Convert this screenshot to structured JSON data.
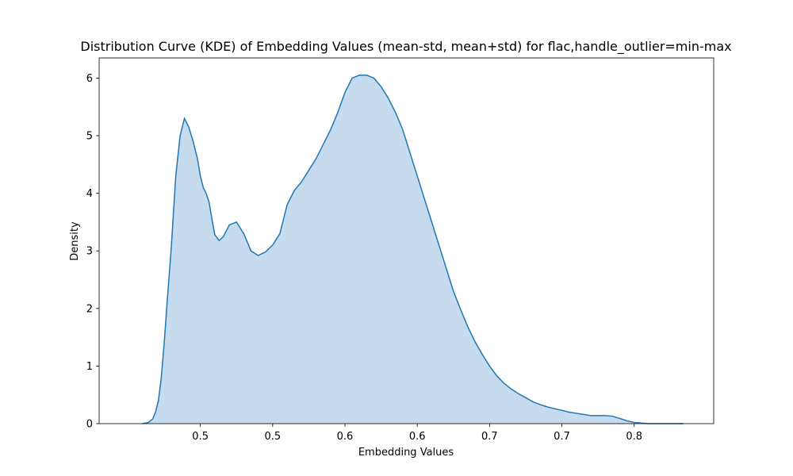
{
  "chart_data": {
    "type": "area",
    "title": "Distribution Curve (KDE) of Embedding Values (mean-std, mean+std) for flac,handle_outlier=min-max",
    "xlabel": "Embedding Values",
    "ylabel": "Density",
    "xlim": [
      0.43,
      0.855
    ],
    "ylim": [
      0,
      6.35
    ],
    "x_ticks": [
      {
        "value": 0.5,
        "label": "0.5"
      },
      {
        "value": 0.55,
        "label": "0.5"
      },
      {
        "value": 0.6,
        "label": "0.6"
      },
      {
        "value": 0.65,
        "label": "0.6"
      },
      {
        "value": 0.7,
        "label": "0.7"
      },
      {
        "value": 0.75,
        "label": "0.7"
      },
      {
        "value": 0.8,
        "label": "0.8"
      }
    ],
    "y_ticks": [
      {
        "value": 0,
        "label": "0"
      },
      {
        "value": 1,
        "label": "1"
      },
      {
        "value": 2,
        "label": "2"
      },
      {
        "value": 3,
        "label": "3"
      },
      {
        "value": 4,
        "label": "4"
      },
      {
        "value": 5,
        "label": "5"
      },
      {
        "value": 6,
        "label": "6"
      }
    ],
    "grid": false,
    "line_color": "#1f77b4",
    "fill_color": "#c6dbee",
    "x": [
      0.46,
      0.464,
      0.467,
      0.469,
      0.471,
      0.473,
      0.475,
      0.477,
      0.48,
      0.483,
      0.486,
      0.489,
      0.492,
      0.495,
      0.498,
      0.5,
      0.502,
      0.504,
      0.506,
      0.508,
      0.51,
      0.513,
      0.516,
      0.52,
      0.525,
      0.53,
      0.535,
      0.54,
      0.545,
      0.55,
      0.555,
      0.56,
      0.565,
      0.57,
      0.575,
      0.58,
      0.585,
      0.59,
      0.595,
      0.6,
      0.605,
      0.61,
      0.615,
      0.62,
      0.625,
      0.63,
      0.635,
      0.64,
      0.645,
      0.65,
      0.655,
      0.66,
      0.665,
      0.67,
      0.675,
      0.68,
      0.685,
      0.69,
      0.695,
      0.7,
      0.705,
      0.71,
      0.715,
      0.72,
      0.725,
      0.73,
      0.735,
      0.74,
      0.745,
      0.75,
      0.755,
      0.76,
      0.765,
      0.77,
      0.775,
      0.78,
      0.785,
      0.79,
      0.795,
      0.8,
      0.805,
      0.81,
      0.815,
      0.82,
      0.825,
      0.83,
      0.834
    ],
    "y": [
      0.0,
      0.02,
      0.08,
      0.2,
      0.4,
      0.8,
      1.4,
      2.1,
      3.1,
      4.3,
      5.0,
      5.3,
      5.15,
      4.9,
      4.6,
      4.3,
      4.1,
      4.0,
      3.85,
      3.55,
      3.28,
      3.18,
      3.25,
      3.45,
      3.5,
      3.3,
      3.0,
      2.92,
      2.98,
      3.1,
      3.3,
      3.8,
      4.05,
      4.2,
      4.4,
      4.6,
      4.85,
      5.1,
      5.4,
      5.75,
      6.0,
      6.05,
      6.05,
      6.0,
      5.85,
      5.65,
      5.4,
      5.1,
      4.7,
      4.3,
      3.9,
      3.5,
      3.1,
      2.7,
      2.3,
      1.98,
      1.68,
      1.42,
      1.2,
      1.0,
      0.83,
      0.7,
      0.6,
      0.52,
      0.45,
      0.38,
      0.33,
      0.29,
      0.26,
      0.23,
      0.2,
      0.18,
      0.16,
      0.14,
      0.14,
      0.14,
      0.13,
      0.09,
      0.05,
      0.02,
      0.01,
      0.0,
      0.0,
      0.0,
      0.0,
      0.0,
      0.0
    ]
  }
}
